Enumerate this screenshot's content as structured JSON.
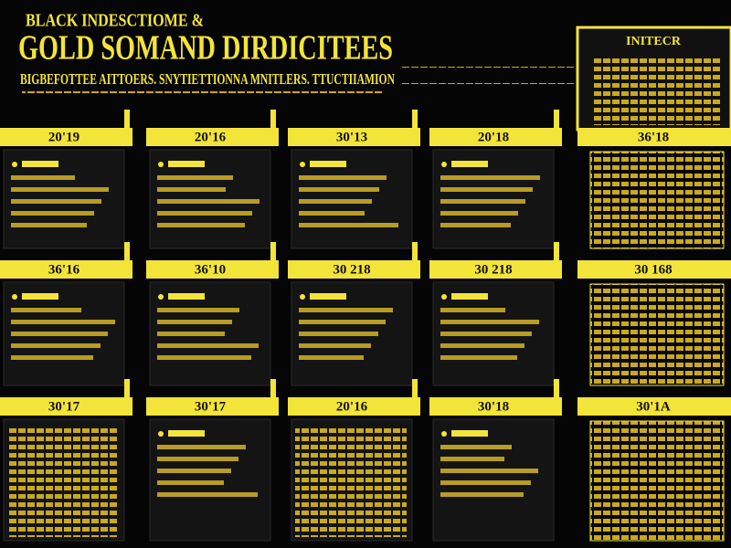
{
  "header": {
    "title_line1": "BLACK INDESCTIOME &",
    "title_line2": "GOLD SOMAND DIRDICITEES",
    "subtitle": "BIGBEFOTTEE AITTOERS. SNYTIETTIONNA MNITLERS. TTUCTIIAMION"
  },
  "side_header": {
    "title": "INITECR"
  },
  "rows": [
    {
      "labels": [
        "20'19",
        "20'16",
        "30'13",
        "20'18"
      ],
      "side_label": "36'18"
    },
    {
      "labels": [
        "36'16",
        "36'10",
        "30 218",
        "30 218"
      ],
      "side_label": "30 168"
    },
    {
      "labels": [
        "30'17",
        "30'17",
        "20'16",
        "30'18"
      ],
      "side_label": "30'1A"
    }
  ]
}
